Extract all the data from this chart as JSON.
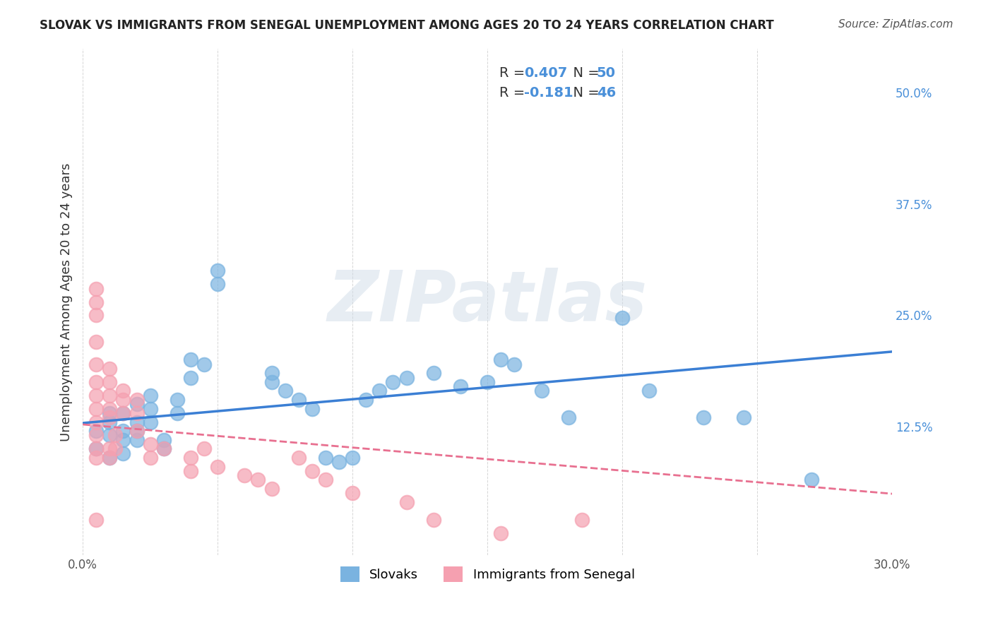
{
  "title": "SLOVAK VS IMMIGRANTS FROM SENEGAL UNEMPLOYMENT AMONG AGES 20 TO 24 YEARS CORRELATION CHART",
  "source": "Source: ZipAtlas.com",
  "xlabel": "",
  "ylabel": "Unemployment Among Ages 20 to 24 years",
  "xlim": [
    0.0,
    0.3
  ],
  "ylim": [
    -0.02,
    0.55
  ],
  "xticks": [
    0.0,
    0.05,
    0.1,
    0.15,
    0.2,
    0.25,
    0.3
  ],
  "xtick_labels": [
    "0.0%",
    "",
    "",
    "",
    "",
    "",
    "30.0%"
  ],
  "ytick_right": [
    0.0,
    0.125,
    0.25,
    0.375,
    0.5
  ],
  "ytick_right_labels": [
    "",
    "12.5%",
    "25.0%",
    "37.5%",
    "50.0%"
  ],
  "background_color": "#ffffff",
  "grid_color": "#cccccc",
  "watermark": "ZIPatlas",
  "legend_R1": "R = 0.407",
  "legend_N1": "N = 50",
  "legend_R2": "R = -0.181",
  "legend_N2": "N = 46",
  "color_blue": "#7ab3e0",
  "color_pink": "#f5a0b0",
  "color_blue_dark": "#4a90d9",
  "color_pink_dark": "#e87090",
  "color_blue_line": "#3b7fd4",
  "color_pink_line": "#e87090",
  "slovak_x": [
    0.005,
    0.005,
    0.01,
    0.01,
    0.01,
    0.01,
    0.015,
    0.015,
    0.015,
    0.015,
    0.02,
    0.02,
    0.02,
    0.02,
    0.025,
    0.025,
    0.025,
    0.03,
    0.03,
    0.035,
    0.035,
    0.04,
    0.04,
    0.045,
    0.05,
    0.05,
    0.07,
    0.07,
    0.075,
    0.08,
    0.085,
    0.09,
    0.095,
    0.1,
    0.105,
    0.11,
    0.115,
    0.12,
    0.13,
    0.14,
    0.15,
    0.155,
    0.16,
    0.17,
    0.18,
    0.2,
    0.21,
    0.23,
    0.245,
    0.27
  ],
  "slovak_y": [
    0.1,
    0.12,
    0.13,
    0.14,
    0.115,
    0.09,
    0.14,
    0.12,
    0.11,
    0.095,
    0.15,
    0.13,
    0.12,
    0.11,
    0.16,
    0.145,
    0.13,
    0.11,
    0.1,
    0.155,
    0.14,
    0.2,
    0.18,
    0.195,
    0.3,
    0.285,
    0.185,
    0.175,
    0.165,
    0.155,
    0.145,
    0.09,
    0.085,
    0.09,
    0.155,
    0.165,
    0.175,
    0.18,
    0.185,
    0.17,
    0.175,
    0.2,
    0.195,
    0.165,
    0.135,
    0.247,
    0.165,
    0.135,
    0.135,
    0.065
  ],
  "senegal_x": [
    0.005,
    0.005,
    0.005,
    0.005,
    0.005,
    0.005,
    0.005,
    0.005,
    0.005,
    0.005,
    0.005,
    0.005,
    0.005,
    0.01,
    0.01,
    0.01,
    0.01,
    0.01,
    0.01,
    0.01,
    0.012,
    0.012,
    0.015,
    0.015,
    0.015,
    0.02,
    0.02,
    0.02,
    0.025,
    0.025,
    0.03,
    0.04,
    0.04,
    0.045,
    0.05,
    0.06,
    0.065,
    0.07,
    0.08,
    0.085,
    0.09,
    0.1,
    0.12,
    0.13,
    0.155,
    0.185
  ],
  "senegal_y": [
    0.28,
    0.265,
    0.25,
    0.22,
    0.195,
    0.175,
    0.16,
    0.145,
    0.13,
    0.115,
    0.1,
    0.09,
    0.02,
    0.19,
    0.175,
    0.16,
    0.145,
    0.135,
    0.1,
    0.09,
    0.115,
    0.1,
    0.165,
    0.155,
    0.14,
    0.155,
    0.14,
    0.12,
    0.105,
    0.09,
    0.1,
    0.09,
    0.075,
    0.1,
    0.08,
    0.07,
    0.065,
    0.055,
    0.09,
    0.075,
    0.065,
    0.05,
    0.04,
    0.02,
    0.005,
    0.02
  ]
}
